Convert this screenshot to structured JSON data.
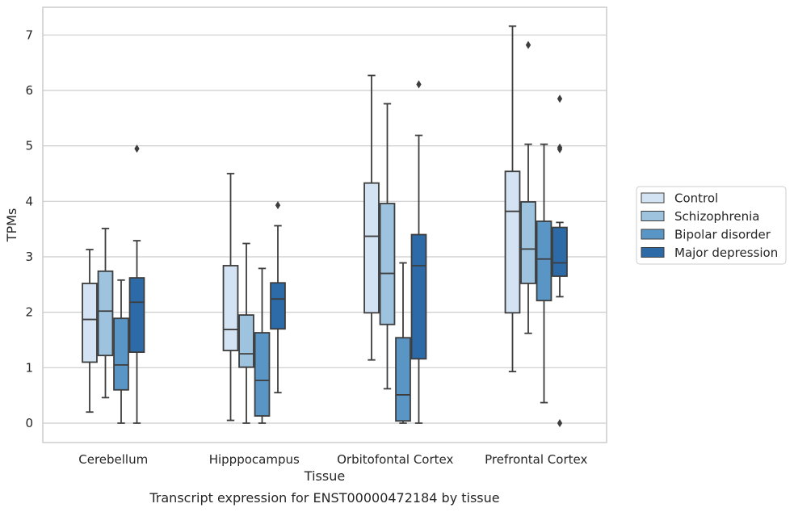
{
  "caption": "Transcript expression for ENST00000472184 by tissue",
  "chart_data": {
    "type": "box",
    "xlabel": "Tissue",
    "ylabel": "TPMs",
    "ylim": [
      -0.35,
      7.5
    ],
    "yticks": [
      0,
      1,
      2,
      3,
      4,
      5,
      6,
      7
    ],
    "grid": true,
    "legend_position": "right",
    "categories": [
      "Cerebellum",
      "Hipppocampus",
      "Orbitofontal Cortex",
      "Prefrontal Cortex"
    ],
    "series": [
      {
        "name": "Control",
        "color": "#d4e3f3",
        "boxes": [
          {
            "whisker_low": 0.2,
            "q1": 1.1,
            "median": 1.87,
            "q3": 2.52,
            "whisker_high": 3.13,
            "outliers": []
          },
          {
            "whisker_low": 0.05,
            "q1": 1.31,
            "median": 1.69,
            "q3": 2.84,
            "whisker_high": 4.5,
            "outliers": []
          },
          {
            "whisker_low": 1.14,
            "q1": 1.99,
            "median": 3.37,
            "q3": 4.33,
            "whisker_high": 6.27,
            "outliers": []
          },
          {
            "whisker_low": 0.93,
            "q1": 1.99,
            "median": 3.82,
            "q3": 4.54,
            "whisker_high": 7.16,
            "outliers": []
          }
        ]
      },
      {
        "name": "Schizophrenia",
        "color": "#9dc3de",
        "boxes": [
          {
            "whisker_low": 0.46,
            "q1": 1.22,
            "median": 2.02,
            "q3": 2.74,
            "whisker_high": 3.51,
            "outliers": []
          },
          {
            "whisker_low": 0.0,
            "q1": 1.01,
            "median": 1.25,
            "q3": 1.95,
            "whisker_high": 3.24,
            "outliers": []
          },
          {
            "whisker_low": 0.62,
            "q1": 1.78,
            "median": 2.7,
            "q3": 3.96,
            "whisker_high": 5.76,
            "outliers": []
          },
          {
            "whisker_low": 1.62,
            "q1": 2.52,
            "median": 3.14,
            "q3": 3.99,
            "whisker_high": 5.03,
            "outliers": [
              6.82
            ]
          }
        ]
      },
      {
        "name": "Bipolar disorder",
        "color": "#5a96c5",
        "boxes": [
          {
            "whisker_low": 0.0,
            "q1": 0.6,
            "median": 1.05,
            "q3": 1.89,
            "whisker_high": 2.58,
            "outliers": []
          },
          {
            "whisker_low": 0.0,
            "q1": 0.13,
            "median": 0.77,
            "q3": 1.63,
            "whisker_high": 2.79,
            "outliers": []
          },
          {
            "whisker_low": 0.0,
            "q1": 0.04,
            "median": 0.51,
            "q3": 1.54,
            "whisker_high": 2.89,
            "outliers": []
          },
          {
            "whisker_low": 0.37,
            "q1": 2.21,
            "median": 2.96,
            "q3": 3.64,
            "whisker_high": 5.03,
            "outliers": []
          }
        ]
      },
      {
        "name": "Major depression",
        "color": "#2c6aa8",
        "boxes": [
          {
            "whisker_low": 0.0,
            "q1": 1.28,
            "median": 2.18,
            "q3": 2.62,
            "whisker_high": 3.29,
            "outliers": [
              4.95
            ]
          },
          {
            "whisker_low": 0.55,
            "q1": 1.7,
            "median": 2.24,
            "q3": 2.53,
            "whisker_high": 3.56,
            "outliers": [
              3.93
            ]
          },
          {
            "whisker_low": 0.0,
            "q1": 1.16,
            "median": 2.84,
            "q3": 3.4,
            "whisker_high": 5.19,
            "outliers": [
              6.11
            ]
          },
          {
            "whisker_low": 2.28,
            "q1": 2.65,
            "median": 2.89,
            "q3": 3.53,
            "whisker_high": 3.62,
            "outliers": [
              5.85,
              4.97,
              4.94,
              0.0
            ]
          }
        ]
      }
    ]
  }
}
